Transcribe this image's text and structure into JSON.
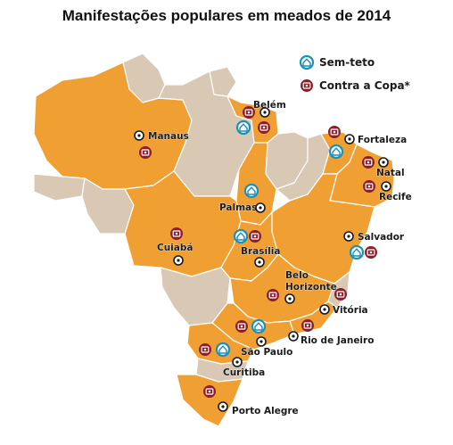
{
  "title": "Manifestações populares em meados de 2014",
  "legend": {
    "sem_teto": "Sem-teto",
    "contra_copa": "Contra a Copa*"
  },
  "colors": {
    "highlight_state": "#F0A033",
    "other_state": "#D9C8B4",
    "sem_teto_ring": "#1E8FB5",
    "contra_copa_ring": "#8C1E2A"
  },
  "cities": {
    "belem": "Belém",
    "manaus": "Manaus",
    "fortaleza": "Fortaleza",
    "natal": "Natal",
    "recife": "Recife",
    "palmas": "Palmas",
    "salvador": "Salvador",
    "brasilia": "Brasília",
    "cuiaba": "Cuiabá",
    "belo_horizonte_1": "Belo",
    "belo_horizonte_2": "Horizonte",
    "vitoria": "Vitória",
    "rio": "Rio de Janeiro",
    "sao_paulo": "São Paulo",
    "curitiba": "Curitiba",
    "porto_alegre": "Porto Alegre"
  }
}
